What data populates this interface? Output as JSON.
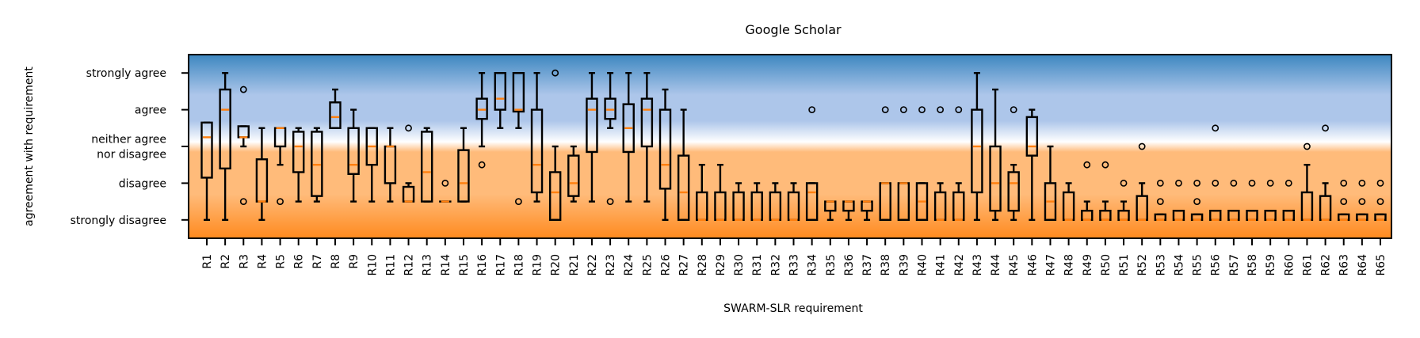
{
  "chart_data": {
    "type": "box",
    "title": "Google Scholar",
    "xlabel": "SWARM-SLR requirement",
    "ylabel": "agreement with requirement",
    "ylim": [
      -0.5,
      4.5
    ],
    "yticks": [
      {
        "value": 0,
        "lines": [
          "strongly disagree"
        ]
      },
      {
        "value": 1,
        "lines": [
          "disagree"
        ]
      },
      {
        "value": 2,
        "lines": [
          "neither agree",
          "nor disagree"
        ]
      },
      {
        "value": 3,
        "lines": [
          "agree"
        ]
      },
      {
        "value": 4,
        "lines": [
          "strongly agree"
        ]
      }
    ],
    "background_gradient": {
      "top": "#3d87c0",
      "light_blue": "#adc6ea",
      "middle": "#ffffff",
      "light_orange": "#ffbb7a",
      "bottom": "#ff8a1f"
    },
    "box_color": "#000000",
    "median_color": "#ff7f0e",
    "grid": false,
    "legend": "none",
    "boxes": [
      {
        "label": "R1",
        "wlo": 0,
        "q1": 1.15,
        "med": 2.25,
        "q3": 2.65,
        "whi": 2.65,
        "fliers": []
      },
      {
        "label": "R2",
        "wlo": 0,
        "q1": 1.4,
        "med": 3.0,
        "q3": 3.55,
        "whi": 4.0,
        "fliers": []
      },
      {
        "label": "R3",
        "wlo": 2.0,
        "q1": 2.25,
        "med": 2.25,
        "q3": 2.55,
        "whi": 2.55,
        "fliers": [
          3.55,
          0.5
        ]
      },
      {
        "label": "R4",
        "wlo": 0,
        "q1": 0.5,
        "med": 0.5,
        "q3": 1.65,
        "whi": 2.5,
        "fliers": []
      },
      {
        "label": "R5",
        "wlo": 1.5,
        "q1": 2.0,
        "med": 2.5,
        "q3": 2.5,
        "whi": 2.5,
        "fliers": [
          0.5
        ]
      },
      {
        "label": "R6",
        "wlo": 0.5,
        "q1": 1.3,
        "med": 2.0,
        "q3": 2.4,
        "whi": 2.5,
        "fliers": []
      },
      {
        "label": "R7",
        "wlo": 0.5,
        "q1": 0.65,
        "med": 1.5,
        "q3": 2.4,
        "whi": 2.5,
        "fliers": []
      },
      {
        "label": "R8",
        "wlo": 2.5,
        "q1": 2.5,
        "med": 2.8,
        "q3": 3.2,
        "whi": 3.55,
        "fliers": []
      },
      {
        "label": "R9",
        "wlo": 0.5,
        "q1": 1.25,
        "med": 1.5,
        "q3": 2.5,
        "whi": 3.0,
        "fliers": []
      },
      {
        "label": "R10",
        "wlo": 0.5,
        "q1": 1.5,
        "med": 2.0,
        "q3": 2.5,
        "whi": 2.5,
        "fliers": []
      },
      {
        "label": "R11",
        "wlo": 0.5,
        "q1": 1.0,
        "med": 2.0,
        "q3": 2.0,
        "whi": 2.5,
        "fliers": []
      },
      {
        "label": "R12",
        "wlo": 0.5,
        "q1": 0.5,
        "med": 0.5,
        "q3": 0.9,
        "whi": 1.0,
        "fliers": [
          2.5
        ]
      },
      {
        "label": "R13",
        "wlo": 0.5,
        "q1": 0.5,
        "med": 1.3,
        "q3": 2.4,
        "whi": 2.5,
        "fliers": []
      },
      {
        "label": "R14",
        "wlo": 0.5,
        "q1": 0.5,
        "med": 0.5,
        "q3": 0.5,
        "whi": 0.5,
        "fliers": [
          1.0
        ]
      },
      {
        "label": "R15",
        "wlo": 0.5,
        "q1": 0.5,
        "med": 1.0,
        "q3": 1.9,
        "whi": 2.5,
        "fliers": []
      },
      {
        "label": "R16",
        "wlo": 2.0,
        "q1": 2.75,
        "med": 3.0,
        "q3": 3.3,
        "whi": 4.0,
        "fliers": [
          1.5
        ]
      },
      {
        "label": "R17",
        "wlo": 2.5,
        "q1": 3.0,
        "med": 3.3,
        "q3": 4.0,
        "whi": 4.0,
        "fliers": []
      },
      {
        "label": "R18",
        "wlo": 2.5,
        "q1": 2.95,
        "med": 3.0,
        "q3": 4.0,
        "whi": 4.0,
        "fliers": [
          0.5
        ]
      },
      {
        "label": "R19",
        "wlo": 0.5,
        "q1": 0.75,
        "med": 1.5,
        "q3": 3.0,
        "whi": 4.0,
        "fliers": []
      },
      {
        "label": "R20",
        "wlo": 0,
        "q1": 0,
        "med": 0.75,
        "q3": 1.3,
        "whi": 2.0,
        "fliers": [
          4.0
        ]
      },
      {
        "label": "R21",
        "wlo": 0.5,
        "q1": 0.65,
        "med": 1.0,
        "q3": 1.75,
        "whi": 2.0,
        "fliers": []
      },
      {
        "label": "R22",
        "wlo": 0.5,
        "q1": 1.85,
        "med": 3.0,
        "q3": 3.3,
        "whi": 4.0,
        "fliers": []
      },
      {
        "label": "R23",
        "wlo": 2.5,
        "q1": 2.75,
        "med": 3.0,
        "q3": 3.3,
        "whi": 4.0,
        "fliers": [
          0.5
        ]
      },
      {
        "label": "R24",
        "wlo": 0.5,
        "q1": 1.85,
        "med": 2.5,
        "q3": 3.15,
        "whi": 4.0,
        "fliers": []
      },
      {
        "label": "R25",
        "wlo": 0.5,
        "q1": 2.0,
        "med": 3.0,
        "q3": 3.3,
        "whi": 4.0,
        "fliers": []
      },
      {
        "label": "R26",
        "wlo": 0,
        "q1": 0.85,
        "med": 1.5,
        "q3": 3.0,
        "whi": 3.55,
        "fliers": []
      },
      {
        "label": "R27",
        "wlo": 0,
        "q1": 0,
        "med": 0.75,
        "q3": 1.75,
        "whi": 3.0,
        "fliers": []
      },
      {
        "label": "R28",
        "wlo": 0,
        "q1": 0,
        "med": 0,
        "q3": 0.75,
        "whi": 1.5,
        "fliers": []
      },
      {
        "label": "R29",
        "wlo": 0,
        "q1": 0,
        "med": 0,
        "q3": 0.75,
        "whi": 1.5,
        "fliers": []
      },
      {
        "label": "R30",
        "wlo": 0,
        "q1": 0,
        "med": 0,
        "q3": 0.75,
        "whi": 1.0,
        "fliers": []
      },
      {
        "label": "R31",
        "wlo": 0,
        "q1": 0,
        "med": 0,
        "q3": 0.75,
        "whi": 1.0,
        "fliers": []
      },
      {
        "label": "R32",
        "wlo": 0,
        "q1": 0,
        "med": 0,
        "q3": 0.75,
        "whi": 1.0,
        "fliers": []
      },
      {
        "label": "R33",
        "wlo": 0,
        "q1": 0,
        "med": 0,
        "q3": 0.75,
        "whi": 1.0,
        "fliers": []
      },
      {
        "label": "R34",
        "wlo": 0,
        "q1": 0,
        "med": 0.75,
        "q3": 1.0,
        "whi": 1.0,
        "fliers": [
          3.0
        ]
      },
      {
        "label": "R35",
        "wlo": 0,
        "q1": 0.25,
        "med": 0.5,
        "q3": 0.5,
        "whi": 0.5,
        "fliers": []
      },
      {
        "label": "R36",
        "wlo": 0,
        "q1": 0.25,
        "med": 0.5,
        "q3": 0.5,
        "whi": 0.5,
        "fliers": []
      },
      {
        "label": "R37",
        "wlo": 0,
        "q1": 0.25,
        "med": 0.5,
        "q3": 0.5,
        "whi": 0.5,
        "fliers": []
      },
      {
        "label": "R38",
        "wlo": 0,
        "q1": 0,
        "med": 1.0,
        "q3": 1.0,
        "whi": 1.0,
        "fliers": [
          3.0
        ]
      },
      {
        "label": "R39",
        "wlo": 0,
        "q1": 0,
        "med": 1.0,
        "q3": 1.0,
        "whi": 1.0,
        "fliers": [
          3.0
        ]
      },
      {
        "label": "R40",
        "wlo": 0,
        "q1": 0,
        "med": 0.5,
        "q3": 1.0,
        "whi": 1.0,
        "fliers": [
          3.0
        ]
      },
      {
        "label": "R41",
        "wlo": 0,
        "q1": 0,
        "med": 0,
        "q3": 0.75,
        "whi": 1.0,
        "fliers": [
          3.0
        ]
      },
      {
        "label": "R42",
        "wlo": 0,
        "q1": 0,
        "med": 0,
        "q3": 0.75,
        "whi": 1.0,
        "fliers": [
          3.0
        ]
      },
      {
        "label": "R43",
        "wlo": 0,
        "q1": 0.75,
        "med": 2.0,
        "q3": 3.0,
        "whi": 4.0,
        "fliers": []
      },
      {
        "label": "R44",
        "wlo": 0,
        "q1": 0.25,
        "med": 1.0,
        "q3": 2.0,
        "whi": 3.55,
        "fliers": []
      },
      {
        "label": "R45",
        "wlo": 0,
        "q1": 0.25,
        "med": 1.0,
        "q3": 1.3,
        "whi": 1.5,
        "fliers": [
          3.0
        ]
      },
      {
        "label": "R46",
        "wlo": 0,
        "q1": 1.75,
        "med": 2.0,
        "q3": 2.8,
        "whi": 3.0,
        "fliers": []
      },
      {
        "label": "R47",
        "wlo": 0,
        "q1": 0,
        "med": 0.5,
        "q3": 1.0,
        "whi": 2.0,
        "fliers": []
      },
      {
        "label": "R48",
        "wlo": 0,
        "q1": 0,
        "med": 0,
        "q3": 0.75,
        "whi": 1.0,
        "fliers": []
      },
      {
        "label": "R49",
        "wlo": 0,
        "q1": 0,
        "med": 0,
        "q3": 0.25,
        "whi": 0.5,
        "fliers": [
          1.5
        ]
      },
      {
        "label": "R50",
        "wlo": 0,
        "q1": 0,
        "med": 0,
        "q3": 0.25,
        "whi": 0.5,
        "fliers": [
          1.5
        ]
      },
      {
        "label": "R51",
        "wlo": 0,
        "q1": 0,
        "med": 0,
        "q3": 0.25,
        "whi": 0.5,
        "fliers": [
          1.0
        ]
      },
      {
        "label": "R52",
        "wlo": 0,
        "q1": 0,
        "med": 0,
        "q3": 0.65,
        "whi": 1.0,
        "fliers": [
          2.0
        ]
      },
      {
        "label": "R53",
        "wlo": 0,
        "q1": 0,
        "med": 0,
        "q3": 0.15,
        "whi": 0.15,
        "fliers": [
          0.5,
          1.0
        ]
      },
      {
        "label": "R54",
        "wlo": 0,
        "q1": 0,
        "med": 0,
        "q3": 0.25,
        "whi": 0.25,
        "fliers": [
          1.0
        ]
      },
      {
        "label": "R55",
        "wlo": 0,
        "q1": 0,
        "med": 0,
        "q3": 0.15,
        "whi": 0.15,
        "fliers": [
          0.5,
          1.0
        ]
      },
      {
        "label": "R56",
        "wlo": 0,
        "q1": 0,
        "med": 0,
        "q3": 0.25,
        "whi": 0.25,
        "fliers": [
          1.0,
          2.5
        ]
      },
      {
        "label": "R57",
        "wlo": 0,
        "q1": 0,
        "med": 0,
        "q3": 0.25,
        "whi": 0.25,
        "fliers": [
          1.0
        ]
      },
      {
        "label": "R58",
        "wlo": 0,
        "q1": 0,
        "med": 0,
        "q3": 0.25,
        "whi": 0.25,
        "fliers": [
          1.0
        ]
      },
      {
        "label": "R59",
        "wlo": 0,
        "q1": 0,
        "med": 0,
        "q3": 0.25,
        "whi": 0.25,
        "fliers": [
          1.0
        ]
      },
      {
        "label": "R60",
        "wlo": 0,
        "q1": 0,
        "med": 0,
        "q3": 0.25,
        "whi": 0.25,
        "fliers": [
          1.0
        ]
      },
      {
        "label": "R61",
        "wlo": 0,
        "q1": 0,
        "med": 0,
        "q3": 0.75,
        "whi": 1.5,
        "fliers": [
          2.0
        ]
      },
      {
        "label": "R62",
        "wlo": 0,
        "q1": 0,
        "med": 0,
        "q3": 0.65,
        "whi": 1.0,
        "fliers": [
          2.5
        ]
      },
      {
        "label": "R63",
        "wlo": 0,
        "q1": 0,
        "med": 0,
        "q3": 0.15,
        "whi": 0.15,
        "fliers": [
          0.5,
          1.0
        ]
      },
      {
        "label": "R64",
        "wlo": 0,
        "q1": 0,
        "med": 0,
        "q3": 0.15,
        "whi": 0.15,
        "fliers": [
          0.5,
          1.0
        ]
      },
      {
        "label": "R65",
        "wlo": 0,
        "q1": 0,
        "med": 0,
        "q3": 0.15,
        "whi": 0.15,
        "fliers": [
          0.5,
          1.0
        ]
      }
    ]
  }
}
